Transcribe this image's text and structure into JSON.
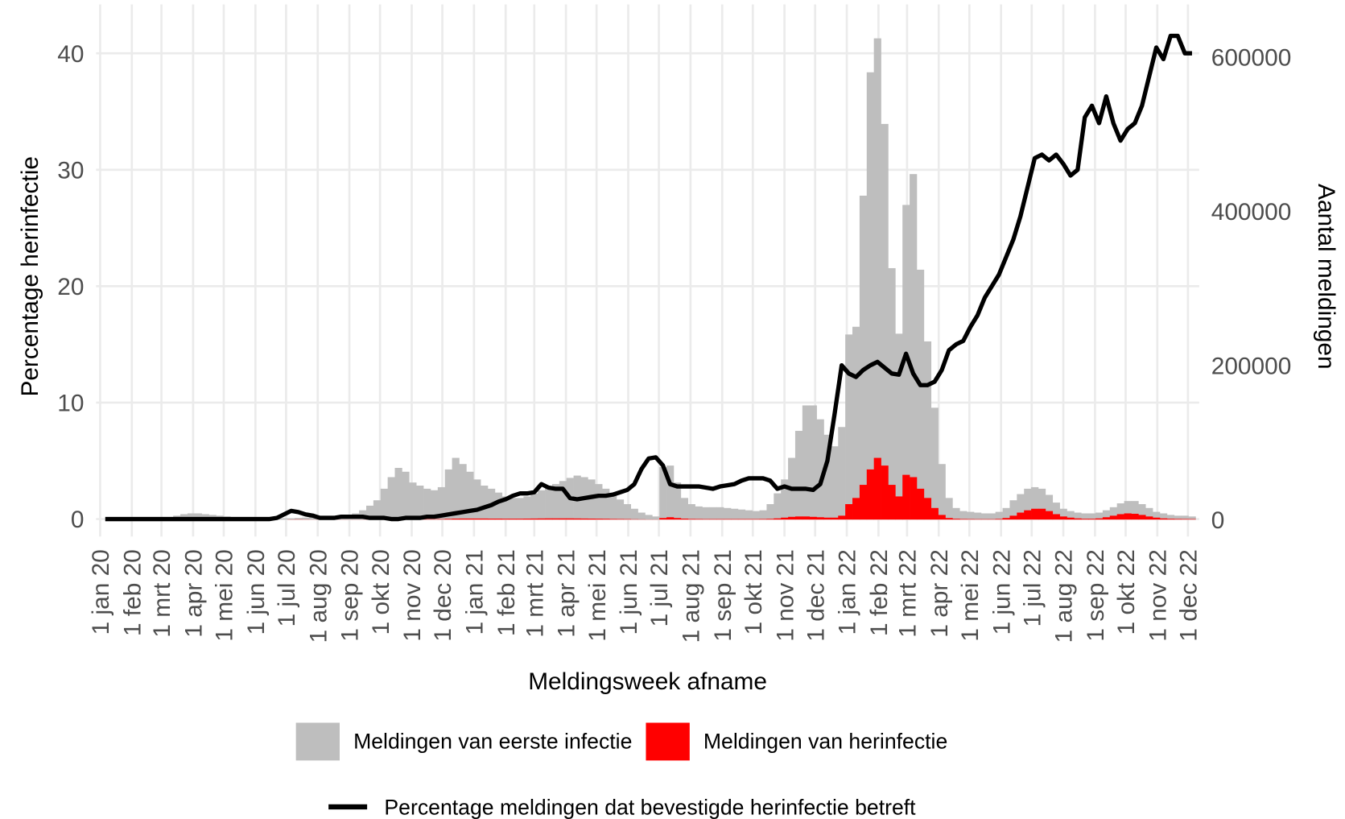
{
  "chart_data": {
    "type": "bar",
    "x_label": "Meldingsweek afname",
    "y_label": "Percentage herinfectie",
    "y2_label": "Aantal meldingen",
    "xlim": [
      "2019-12-28",
      "2022-12-12"
    ],
    "ylim": [
      -1.5,
      44.2
    ],
    "y2lim": [
      -22000,
      668000
    ],
    "yticks": [
      0,
      10,
      20,
      30,
      40
    ],
    "y2ticks": [
      0,
      200000,
      400000,
      600000
    ],
    "grid": true,
    "xticks": [
      {
        "value": "2020-01-01",
        "label": "1 jan 20"
      },
      {
        "value": "2020-02-01",
        "label": "1 feb 20"
      },
      {
        "value": "2020-03-01",
        "label": "1 mrt 20"
      },
      {
        "value": "2020-04-01",
        "label": "1 apr 20"
      },
      {
        "value": "2020-05-01",
        "label": "1 mei 20"
      },
      {
        "value": "2020-06-01",
        "label": "1 jun 20"
      },
      {
        "value": "2020-07-01",
        "label": "1 jul 20"
      },
      {
        "value": "2020-08-01",
        "label": "1 aug 20"
      },
      {
        "value": "2020-09-01",
        "label": "1 sep 20"
      },
      {
        "value": "2020-10-01",
        "label": "1 okt 20"
      },
      {
        "value": "2020-11-01",
        "label": "1 nov 20"
      },
      {
        "value": "2020-12-01",
        "label": "1 dec 20"
      },
      {
        "value": "2021-01-01",
        "label": "1 jan 21"
      },
      {
        "value": "2021-02-01",
        "label": "1 feb 21"
      },
      {
        "value": "2021-03-01",
        "label": "1 mrt 21"
      },
      {
        "value": "2021-04-01",
        "label": "1 apr 21"
      },
      {
        "value": "2021-05-01",
        "label": "1 mei 21"
      },
      {
        "value": "2021-06-01",
        "label": "1 jun 21"
      },
      {
        "value": "2021-07-01",
        "label": "1 jul 21"
      },
      {
        "value": "2021-08-01",
        "label": "1 aug 21"
      },
      {
        "value": "2021-09-01",
        "label": "1 sep 21"
      },
      {
        "value": "2021-10-01",
        "label": "1 okt 21"
      },
      {
        "value": "2021-11-01",
        "label": "1 nov 21"
      },
      {
        "value": "2021-12-01",
        "label": "1 dec 21"
      },
      {
        "value": "2022-01-01",
        "label": "1 jan 22"
      },
      {
        "value": "2022-02-01",
        "label": "1 feb 22"
      },
      {
        "value": "2022-03-01",
        "label": "1 mrt 22"
      },
      {
        "value": "2022-04-01",
        "label": "1 apr 22"
      },
      {
        "value": "2022-05-01",
        "label": "1 mei 22"
      },
      {
        "value": "2022-06-01",
        "label": "1 jun 22"
      },
      {
        "value": "2022-07-01",
        "label": "1 jul 22"
      },
      {
        "value": "2022-08-01",
        "label": "1 aug 22"
      },
      {
        "value": "2022-09-01",
        "label": "1 sep 22"
      },
      {
        "value": "2022-10-01",
        "label": "1 okt 22"
      },
      {
        "value": "2022-11-01",
        "label": "1 nov 22"
      },
      {
        "value": "2022-12-01",
        "label": "1 dec 22"
      }
    ],
    "x": [
      "2020-01-06",
      "2020-01-13",
      "2020-01-20",
      "2020-01-27",
      "2020-02-03",
      "2020-02-10",
      "2020-02-17",
      "2020-02-24",
      "2020-03-02",
      "2020-03-09",
      "2020-03-16",
      "2020-03-23",
      "2020-03-30",
      "2020-04-06",
      "2020-04-13",
      "2020-04-20",
      "2020-04-27",
      "2020-05-04",
      "2020-05-11",
      "2020-05-18",
      "2020-05-25",
      "2020-06-01",
      "2020-06-08",
      "2020-06-15",
      "2020-06-22",
      "2020-06-29",
      "2020-07-06",
      "2020-07-13",
      "2020-07-20",
      "2020-07-27",
      "2020-08-03",
      "2020-08-10",
      "2020-08-17",
      "2020-08-24",
      "2020-08-31",
      "2020-09-07",
      "2020-09-14",
      "2020-09-21",
      "2020-09-28",
      "2020-10-05",
      "2020-10-12",
      "2020-10-19",
      "2020-10-26",
      "2020-11-02",
      "2020-11-09",
      "2020-11-16",
      "2020-11-23",
      "2020-11-30",
      "2020-12-07",
      "2020-12-14",
      "2020-12-21",
      "2020-12-28",
      "2021-01-04",
      "2021-01-11",
      "2021-01-18",
      "2021-01-25",
      "2021-02-01",
      "2021-02-08",
      "2021-02-15",
      "2021-02-22",
      "2021-03-01",
      "2021-03-08",
      "2021-03-15",
      "2021-03-22",
      "2021-03-29",
      "2021-04-05",
      "2021-04-12",
      "2021-04-19",
      "2021-04-26",
      "2021-05-03",
      "2021-05-10",
      "2021-05-17",
      "2021-05-24",
      "2021-05-31",
      "2021-06-07",
      "2021-06-14",
      "2021-06-21",
      "2021-06-28",
      "2021-07-05",
      "2021-07-12",
      "2021-07-19",
      "2021-07-26",
      "2021-08-02",
      "2021-08-09",
      "2021-08-16",
      "2021-08-23",
      "2021-08-30",
      "2021-09-06",
      "2021-09-13",
      "2021-09-20",
      "2021-09-27",
      "2021-10-04",
      "2021-10-11",
      "2021-10-18",
      "2021-10-25",
      "2021-11-01",
      "2021-11-08",
      "2021-11-15",
      "2021-11-22",
      "2021-11-29",
      "2021-12-06",
      "2021-12-13",
      "2021-12-20",
      "2021-12-27",
      "2022-01-03",
      "2022-01-10",
      "2022-01-17",
      "2022-01-24",
      "2022-01-31",
      "2022-02-07",
      "2022-02-14",
      "2022-02-21",
      "2022-02-28",
      "2022-03-07",
      "2022-03-14",
      "2022-03-21",
      "2022-03-28",
      "2022-04-04",
      "2022-04-11",
      "2022-04-18",
      "2022-04-25",
      "2022-05-02",
      "2022-05-09",
      "2022-05-16",
      "2022-05-23",
      "2022-05-30",
      "2022-06-06",
      "2022-06-13",
      "2022-06-20",
      "2022-06-27",
      "2022-07-04",
      "2022-07-11",
      "2022-07-18",
      "2022-07-25",
      "2022-08-01",
      "2022-08-08",
      "2022-08-15",
      "2022-08-22",
      "2022-08-29",
      "2022-09-05",
      "2022-09-12",
      "2022-09-19",
      "2022-09-26",
      "2022-10-03",
      "2022-10-10",
      "2022-10-17",
      "2022-10-24",
      "2022-10-31",
      "2022-11-07",
      "2022-11-14",
      "2022-11-21",
      "2022-11-28",
      "2022-12-05"
    ],
    "series": [
      {
        "name": "Meldingen van eerste infectie",
        "type": "bar",
        "axis": "y2",
        "color": "#bebebe",
        "values": [
          0,
          0,
          0,
          0,
          0,
          0,
          0,
          500,
          1000,
          2000,
          5000,
          7000,
          8000,
          8000,
          7000,
          6000,
          5000,
          4000,
          3000,
          2000,
          1500,
          1000,
          1000,
          1000,
          1000,
          1500,
          1500,
          2000,
          2500,
          3000,
          3500,
          4000,
          4500,
          5000,
          6000,
          8000,
          12000,
          18000,
          25000,
          40000,
          55000,
          67000,
          62000,
          48000,
          44000,
          40000,
          38000,
          42000,
          65000,
          80000,
          72000,
          62000,
          52000,
          44000,
          40000,
          35000,
          30000,
          28000,
          28000,
          30000,
          34000,
          38000,
          42000,
          46000,
          50000,
          54000,
          57000,
          55000,
          52000,
          46000,
          40000,
          34000,
          26000,
          20000,
          14000,
          9000,
          6000,
          4000,
          68000,
          70000,
          48000,
          28000,
          20000,
          17000,
          16000,
          16000,
          16000,
          15000,
          14000,
          13000,
          12000,
          11000,
          12000,
          20000,
          34000,
          52000,
          80000,
          115000,
          148000,
          148000,
          130000,
          110000,
          95000,
          120000,
          240000,
          250000,
          420000,
          580000,
          624000,
          513000,
          326000,
          241000,
          408000,
          448000,
          324000,
          231000,
          145000,
          72000,
          28000,
          15000,
          11000,
          10000,
          9000,
          8000,
          8000,
          10000,
          15000,
          25000,
          33000,
          40000,
          42000,
          40000,
          32000,
          22000,
          14000,
          11000,
          9000,
          8000,
          8000,
          9000,
          12000,
          16000,
          21000,
          24000,
          24000,
          20000,
          15000,
          10000,
          8000,
          6000,
          5000,
          5000,
          4000
        ]
      },
      {
        "name": "Meldingen van herinfectie",
        "type": "bar",
        "axis": "y2",
        "color": "#ff0000",
        "values": [
          0,
          0,
          0,
          0,
          0,
          0,
          0,
          0,
          0,
          0,
          0,
          0,
          0,
          0,
          0,
          0,
          0,
          0,
          0,
          0,
          0,
          0,
          0,
          0,
          0,
          0,
          200,
          300,
          200,
          100,
          100,
          100,
          100,
          100,
          100,
          100,
          100,
          200,
          300,
          300,
          400,
          500,
          500,
          500,
          500,
          500,
          500,
          600,
          900,
          1200,
          1300,
          1300,
          1300,
          1300,
          1200,
          1200,
          1100,
          1100,
          1100,
          1200,
          1300,
          1400,
          1500,
          1500,
          1500,
          1500,
          1400,
          1300,
          1200,
          1100,
          1000,
          800,
          700,
          600,
          400,
          300,
          200,
          200,
          2000,
          3000,
          2000,
          1200,
          800,
          700,
          600,
          600,
          600,
          600,
          600,
          600,
          600,
          600,
          700,
          900,
          1500,
          2500,
          3500,
          4000,
          4000,
          3500,
          3000,
          2500,
          2500,
          5000,
          20000,
          28000,
          45000,
          65000,
          80000,
          70000,
          45000,
          30000,
          58000,
          55000,
          40000,
          28000,
          15000,
          6000,
          2000,
          1000,
          700,
          600,
          500,
          500,
          500,
          800,
          2000,
          5000,
          9000,
          12000,
          14000,
          14000,
          11000,
          7000,
          4000,
          2500,
          1500,
          1000,
          1000,
          1500,
          3000,
          5000,
          7000,
          8000,
          7500,
          6000,
          4000,
          2500,
          1500,
          1000,
          800,
          700,
          600
        ]
      },
      {
        "name": "Percentage meldingen dat bevestigde herinfectie betreft",
        "type": "line",
        "axis": "y",
        "color": "#000000",
        "values": [
          0,
          0,
          0,
          0,
          0,
          0,
          0,
          0,
          0,
          0,
          0,
          0,
          0,
          0,
          0,
          0,
          0,
          0,
          0,
          0,
          0,
          0,
          0,
          0,
          0.1,
          0.4,
          0.7,
          0.6,
          0.4,
          0.3,
          0.1,
          0.1,
          0.1,
          0.2,
          0.2,
          0.2,
          0.2,
          0.1,
          0.1,
          0.1,
          0,
          0,
          0.1,
          0.1,
          0.1,
          0.2,
          0.2,
          0.3,
          0.4,
          0.5,
          0.6,
          0.7,
          0.8,
          1.0,
          1.2,
          1.5,
          1.7,
          2.0,
          2.2,
          2.2,
          2.3,
          3.0,
          2.7,
          2.6,
          2.6,
          1.8,
          1.7,
          1.8,
          1.9,
          2.0,
          2.0,
          2.1,
          2.3,
          2.5,
          3.0,
          4.3,
          5.2,
          5.3,
          4.6,
          3.0,
          2.8,
          2.8,
          2.8,
          2.8,
          2.7,
          2.6,
          2.8,
          2.9,
          3.0,
          3.3,
          3.5,
          3.5,
          3.5,
          3.3,
          2.6,
          2.8,
          2.6,
          2.6,
          2.6,
          2.5,
          3.0,
          5.0,
          9.0,
          13.2,
          12.5,
          12.2,
          12.8,
          13.2,
          13.5,
          13.0,
          12.5,
          12.4,
          14.2,
          12.5,
          11.5,
          11.5,
          11.8,
          12.8,
          14.5,
          15.0,
          15.3,
          16.5,
          17.5,
          19.0,
          20.0,
          21.0,
          22.5,
          24.0,
          26.0,
          28.5,
          31.0,
          31.3,
          30.8,
          31.3,
          30.5,
          29.5,
          30.0,
          34.5,
          35.5,
          34.0,
          36.3,
          34.0,
          32.5,
          33.5,
          34.0,
          35.5,
          38.0,
          40.5,
          39.5,
          41.5,
          41.5,
          40.0,
          40.0
        ]
      }
    ]
  }
}
